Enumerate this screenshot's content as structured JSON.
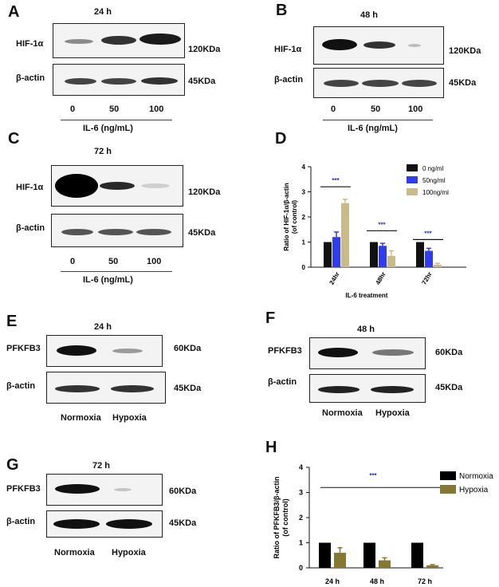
{
  "panels": {
    "A": {
      "letter": "A",
      "title": "24 h",
      "row1": "HIF-1α",
      "row2": "β-actin",
      "size1": "120KDa",
      "size2": "45KDa",
      "lanes": [
        "0",
        "50",
        "100"
      ],
      "xlabel": "IL-6 (ng/mL)"
    },
    "B": {
      "letter": "B",
      "title": "48 h",
      "row1": "HIF-1α",
      "row2": "β-actin",
      "size1": "120KDa",
      "size2": "45KDa",
      "lanes": [
        "0",
        "50",
        "100"
      ],
      "xlabel": "IL-6 (ng/mL)"
    },
    "C": {
      "letter": "C",
      "title": "72 h",
      "row1": "HIF-1α",
      "row2": "β-actin",
      "size1": "120KDa",
      "size2": "45KDa",
      "lanes": [
        "0",
        "50",
        "100"
      ],
      "xlabel": "IL-6 (ng/mL)"
    },
    "D": {
      "letter": "D"
    },
    "E": {
      "letter": "E",
      "title": "24 h",
      "row1": "PFKFB3",
      "row2": "β-actin",
      "size1": "60KDa",
      "size2": "45KDa",
      "lanes": [
        "Normoxia",
        "Hypoxia"
      ]
    },
    "F": {
      "letter": "F",
      "title": "48 h",
      "row1": "PFKFB3",
      "row2": "β-actin",
      "size1": "60KDa",
      "size2": "45KDa",
      "lanes": [
        "Normoxia",
        "Hypoxia"
      ]
    },
    "G": {
      "letter": "G",
      "title": "72 h",
      "row1": "PFKFB3",
      "row2": "β-actin",
      "size1": "60KDa",
      "size2": "45KDa",
      "lanes": [
        "Normoxia",
        "Hypoxia"
      ]
    },
    "H": {
      "letter": "H"
    }
  },
  "chart_data": [
    {
      "id": "D",
      "type": "bar",
      "categories": [
        "24hr",
        "48hr",
        "72hr"
      ],
      "series": [
        {
          "name": "0 ng/ml",
          "color": "#111111",
          "values": [
            1.0,
            1.0,
            1.0
          ],
          "errors": [
            0,
            0,
            0
          ]
        },
        {
          "name": "50ng/ml",
          "color": "#2f3cf0",
          "values": [
            1.2,
            0.85,
            0.65
          ],
          "errors": [
            0.2,
            0.1,
            0.1
          ]
        },
        {
          "name": "100ng/ml",
          "color": "#c9bc8a",
          "values": [
            2.55,
            0.45,
            0.1
          ],
          "errors": [
            0.15,
            0.2,
            0.05
          ]
        }
      ],
      "ylabel": "Ratio of HIF-1α/β-actin\n(of control)",
      "xlabel": "IL-6 treatment",
      "ylim": [
        0,
        4
      ],
      "yticks": [
        "0",
        "1",
        "2",
        "3",
        "4"
      ],
      "significance": [
        "***",
        "***",
        "***"
      ],
      "significance_color": "#2b2bb0",
      "legend": "top-right"
    },
    {
      "id": "H",
      "type": "bar",
      "categories": [
        "24 h",
        "48 h",
        "72 h"
      ],
      "series": [
        {
          "name": "Normoxia",
          "color": "#000000",
          "values": [
            1.0,
            1.0,
            1.0
          ],
          "errors": [
            0,
            0,
            0
          ]
        },
        {
          "name": "Hypoxia",
          "color": "#857832",
          "values": [
            0.6,
            0.3,
            0.1
          ],
          "errors": [
            0.2,
            0.1,
            0.03
          ]
        }
      ],
      "ylabel": "Ratio of PFKFB3/β-actin\n(of control)",
      "ylim": [
        0,
        4
      ],
      "yticks": [
        "0",
        "1",
        "2",
        "3",
        "4"
      ],
      "significance": [
        "***"
      ],
      "significance_color": "#2b2bb0",
      "legend": "top-right"
    }
  ]
}
